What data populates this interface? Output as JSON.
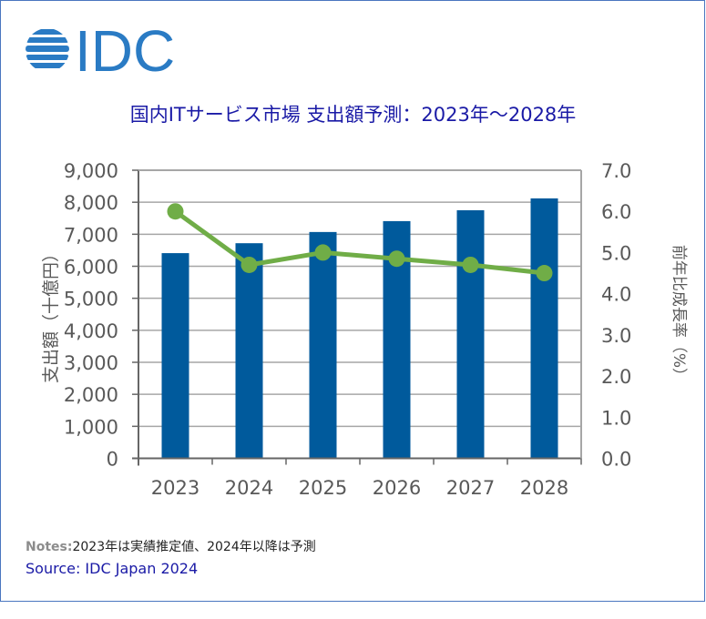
{
  "logo": {
    "text": "IDC",
    "color": "#2a7bc4"
  },
  "frame_color": "#4a76bf",
  "notes": {
    "label": "Notes:",
    "text": "2023年は実績推定値、2024年以降は予測"
  },
  "source": "Source: IDC Japan 2024",
  "chart_data": {
    "type": "bar",
    "title": "国内ITサービス市場 支出額予測：2023年～2028年",
    "categories": [
      "2023",
      "2024",
      "2025",
      "2026",
      "2027",
      "2028"
    ],
    "series": [
      {
        "name": "支出額（十億円）",
        "type": "bar",
        "axis": "left",
        "color": "#005a9c",
        "values": [
          6410,
          6720,
          7070,
          7410,
          7750,
          8120
        ]
      },
      {
        "name": "前年比成長率（%）",
        "type": "line",
        "axis": "right",
        "color": "#70ad47",
        "values": [
          6.0,
          4.7,
          5.0,
          4.85,
          4.7,
          4.5
        ]
      }
    ],
    "ylabel": "支出額（十億円）",
    "y2label": "前年比成長率（%）",
    "xlabel": "",
    "ylim": [
      0,
      9000
    ],
    "y2lim": [
      0,
      7.0
    ],
    "yticks": [
      "0",
      "1,000",
      "2,000",
      "3,000",
      "4,000",
      "5,000",
      "6,000",
      "7,000",
      "8,000",
      "9,000"
    ],
    "y2ticks": [
      "0.0",
      "1.0",
      "2.0",
      "3.0",
      "4.0",
      "5.0",
      "6.0",
      "7.0"
    ],
    "grid": true,
    "legend": "none"
  }
}
